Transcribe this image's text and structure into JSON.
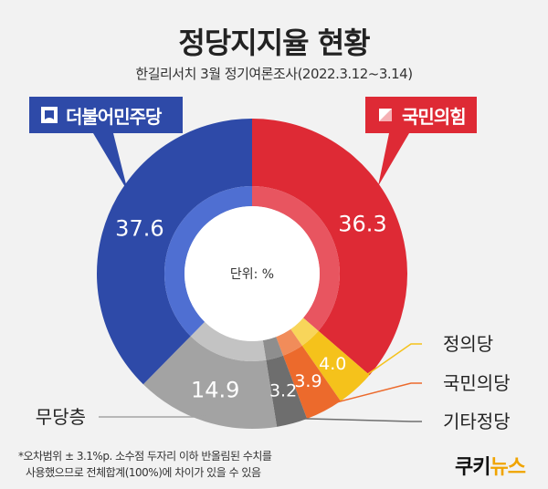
{
  "title": "정당지지율 현황",
  "subtitle": "한길리서치  3월 정기여론조사(2022.3.12~3.14)",
  "unit_label": "단위: %",
  "parties": {
    "dem_label": "더불어민주당",
    "ppp_label": "국민의힘"
  },
  "footnote": {
    "line1": "*오차범위 ± 3.1%p. 소수점 두자리 이하 반올림된 수치를",
    "line2": "사용했으므로 전체합계(100%)에 차이가 있을 수 있음"
  },
  "brand": {
    "part1": "쿠키",
    "part2": "뉴스"
  },
  "chart_data": {
    "type": "pie",
    "title": "정당지지율 현황",
    "unit": "%",
    "slices": [
      {
        "label": "국민의힘",
        "value": 36.3,
        "value_text": "36.3",
        "color": "#de2a35",
        "inner_color": "#e85560"
      },
      {
        "label": "정의당",
        "value": 4.0,
        "value_text": "4.0",
        "color": "#f5c21b",
        "inner_color": "#f8d55a"
      },
      {
        "label": "국민의당",
        "value": 3.9,
        "value_text": "3.9",
        "color": "#ec6a2c",
        "inner_color": "#f18c5a"
      },
      {
        "label": "기타정당",
        "value": 3.2,
        "value_text": "3.2",
        "color": "#6e6e6e",
        "inner_color": "#8e8e8e"
      },
      {
        "label": "무당층",
        "value": 14.9,
        "value_text": "14.9",
        "color": "#a3a3a3",
        "inner_color": "#c3c3c3"
      },
      {
        "label": "더불어민주당",
        "value": 37.6,
        "value_text": "37.6",
        "color": "#2e4aa8",
        "inner_color": "#4f6fd2"
      }
    ]
  }
}
